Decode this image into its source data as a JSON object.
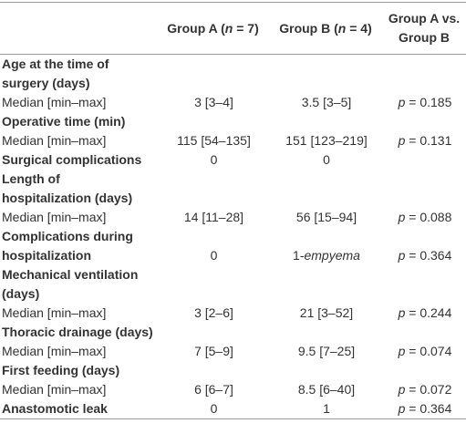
{
  "table": {
    "header": [
      "",
      [
        {
          "t": "Group A ("
        },
        {
          "t": "n",
          "i": true
        },
        {
          "t": " = 7)"
        }
      ],
      [
        {
          "t": "Group B ("
        },
        {
          "t": "n",
          "i": true
        },
        {
          "t": " = 4)"
        }
      ],
      "Group A vs.\nGroup B"
    ],
    "rows": [
      {
        "section": true,
        "cells": [
          "Age at the time of\nsurgery (days)",
          "",
          "",
          ""
        ]
      },
      {
        "section": false,
        "cells": [
          "Median [min–max]",
          "3 [3–4]",
          "3.5 [3–5]",
          [
            {
              "t": "p",
              "i": true
            },
            {
              "t": " = 0.185"
            }
          ]
        ]
      },
      {
        "section": true,
        "cells": [
          "Operative time (min)",
          "",
          "",
          ""
        ]
      },
      {
        "section": false,
        "cells": [
          "Median [min–max]",
          "115 [54–135]",
          "151 [123–219]",
          [
            {
              "t": "p",
              "i": true
            },
            {
              "t": " = 0.131"
            }
          ]
        ]
      },
      {
        "section": true,
        "cells": [
          "Surgical complications",
          "0",
          "0",
          ""
        ]
      },
      {
        "section": true,
        "cells": [
          "Length of\nhospitalization (days)",
          "",
          "",
          ""
        ]
      },
      {
        "section": false,
        "cells": [
          "Median [min–max]",
          "14 [11–28]",
          "56 [15–94]",
          [
            {
              "t": "p",
              "i": true
            },
            {
              "t": " = 0.088"
            }
          ]
        ]
      },
      {
        "section": true,
        "cells": [
          "Complications during\nhospitalization",
          "0",
          [
            {
              "t": "1-"
            },
            {
              "t": "empyema",
              "i": true
            }
          ],
          [
            {
              "t": "p",
              "i": true
            },
            {
              "t": " = 0.364"
            }
          ]
        ]
      },
      {
        "section": true,
        "cells": [
          "Mechanical ventilation\n(days)",
          "",
          "",
          ""
        ]
      },
      {
        "section": false,
        "cells": [
          "Median [min–max]",
          "3 [2–6]",
          "21 [3–52]",
          [
            {
              "t": "p",
              "i": true
            },
            {
              "t": " = 0.244"
            }
          ]
        ]
      },
      {
        "section": true,
        "cells": [
          "Thoracic drainage (days)",
          "",
          "",
          ""
        ]
      },
      {
        "section": false,
        "cells": [
          "Median [min–max]",
          "7 [5–9]",
          "9.5 [7–25]",
          [
            {
              "t": "p",
              "i": true
            },
            {
              "t": " = 0.074"
            }
          ]
        ]
      },
      {
        "section": true,
        "cells": [
          "First feeding (days)",
          "",
          "",
          ""
        ]
      },
      {
        "section": false,
        "cells": [
          "Median [min–max]",
          "6 [6–7]",
          "8.5 [6–40]",
          [
            {
              "t": "p",
              "i": true
            },
            {
              "t": " = 0.072"
            }
          ]
        ]
      },
      {
        "section": true,
        "cells": [
          "Anastomotic leak",
          "0",
          "1",
          [
            {
              "t": "p",
              "i": true
            },
            {
              "t": " = 0.364"
            }
          ]
        ]
      }
    ]
  }
}
